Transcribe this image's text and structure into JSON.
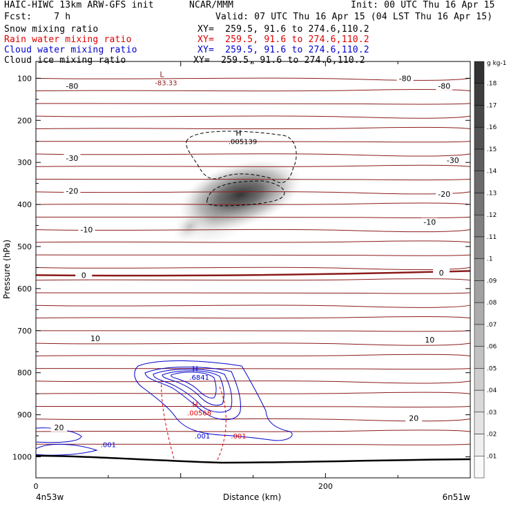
{
  "header": {
    "line1_left": "HAIC-HIWC 13km ARW-GFS init",
    "line1_mid": "NCAR/MMM",
    "line1_right": "Init: 00 UTC Thu 16 Apr 15",
    "fcst": "Fcst:    7 h",
    "valid": "Valid: 07 UTC Thu 16 Apr 15 (04 LST Thu 16 Apr 15)"
  },
  "legend": [
    {
      "label": "Snow mixing ratio",
      "xy": "XY=  259.5, 91.6 to 274.6,110.2",
      "color": "#000000"
    },
    {
      "label": "Rain water mixing ratio",
      "xy": "XY=  259.5, 91.6 to 274.6,110.2",
      "color": "#dd0000"
    },
    {
      "label": "Cloud water mixing ratio",
      "xy": "XY=  259.5, 91.6 to 274.6,110.2",
      "color": "#0000cc"
    },
    {
      "label": "Cloud ice mixing ratio",
      "xy": "XY=  259.5, 91.6 to 274.6,110.2",
      "color": "#000000"
    }
  ],
  "chart_data": {
    "type": "heatmap",
    "xlabel": "Distance (km)",
    "ylabel": "Pressure (hPa)",
    "xlim": [
      0,
      300
    ],
    "ylim_hpa": [
      1050,
      60
    ],
    "x_ticks": [
      0,
      200
    ],
    "y_ticks": [
      100,
      200,
      300,
      400,
      500,
      600,
      700,
      800,
      900,
      1000
    ],
    "start_label": "4n53w",
    "end_label": "6n51w",
    "colorbar": {
      "unit": "g kg-1",
      "ticks": [
        ".01",
        ".02",
        ".03",
        ".04",
        ".05",
        ".06",
        ".07",
        ".08",
        ".09",
        ".1",
        ".11",
        ".12",
        ".13",
        ".14",
        ".15",
        ".16",
        ".17",
        ".18"
      ]
    },
    "temperature_labels": [
      {
        "text": "-80",
        "x": 25,
        "p": 118
      },
      {
        "text": "-80",
        "x": 255,
        "p": 100
      },
      {
        "text": "-80",
        "x": 282,
        "p": 118
      },
      {
        "text": "-30",
        "x": 25,
        "p": 290
      },
      {
        "text": "-30",
        "x": 288,
        "p": 295
      },
      {
        "text": "-20",
        "x": 25,
        "p": 368
      },
      {
        "text": "-20",
        "x": 282,
        "p": 375
      },
      {
        "text": "-10",
        "x": 35,
        "p": 460
      },
      {
        "text": "-10",
        "x": 272,
        "p": 442
      },
      {
        "text": "0",
        "x": 33,
        "p": 568
      },
      {
        "text": "0",
        "x": 280,
        "p": 562
      },
      {
        "text": "10",
        "x": 41,
        "p": 718
      },
      {
        "text": "10",
        "x": 272,
        "p": 722
      },
      {
        "text": "20",
        "x": 16,
        "p": 930
      },
      {
        "text": "20",
        "x": 261,
        "p": 908
      }
    ],
    "extrema": [
      {
        "type": "L",
        "value": "-83.33",
        "x": 87,
        "p": 110,
        "color": "#8b1a1a"
      },
      {
        "type": "H",
        "value": ".005139",
        "x": 140,
        "p": 250,
        "color": "#000000"
      },
      {
        "type": "H",
        "value": ".6841",
        "x": 110,
        "p": 810,
        "color": "#0000cc"
      },
      {
        "type": "H",
        "value": ".00568",
        "x": 110,
        "p": 895,
        "color": "#dd0000"
      }
    ],
    "contour_labels": [
      {
        "text": ".001",
        "x": 50,
        "p": 970,
        "color": "#0000cc"
      },
      {
        "text": ".001",
        "x": 115,
        "p": 950,
        "color": "#0000cc"
      },
      {
        "text": ".001",
        "x": 140,
        "p": 950,
        "color": "#dd0000"
      }
    ]
  }
}
